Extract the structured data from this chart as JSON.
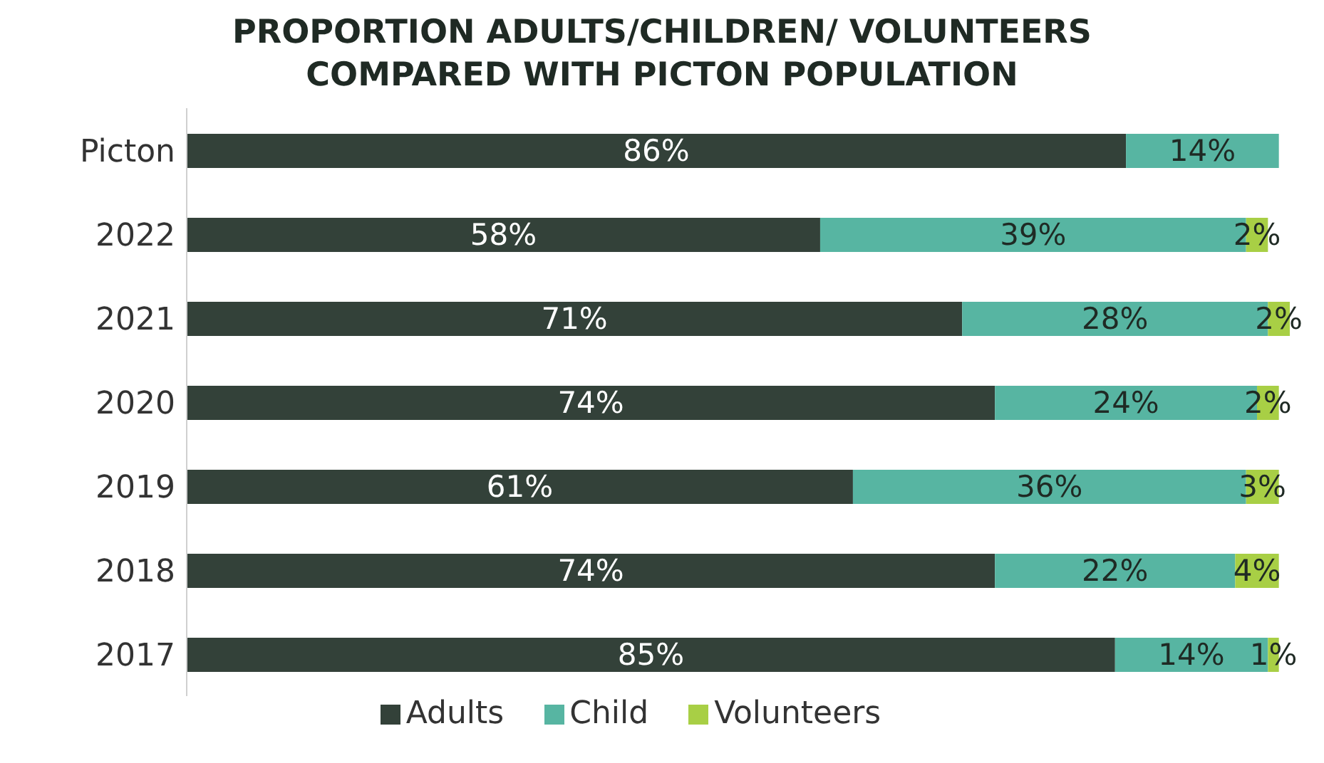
{
  "chart_data": {
    "type": "bar",
    "title": "PROPORTION ADULTS/CHILDREN/ VOLUNTEERS COMPARED WITH PICTON POPULATION",
    "orientation": "horizontal",
    "stacked": true,
    "legend": "bottom",
    "grid": false,
    "tick_labels": "y",
    "categories": [
      "Picton",
      "2022",
      "2021",
      "2020",
      "2019",
      "2018",
      "2017"
    ],
    "series": [
      {
        "name": "Adults",
        "color": "#334139",
        "values": [
          86,
          58,
          71,
          74,
          61,
          74,
          85
        ],
        "value_labels": [
          "86%",
          "58%",
          "71%",
          "74%",
          "61%",
          "74%",
          "85%"
        ]
      },
      {
        "name": "Child",
        "color": "#57b5a2",
        "values": [
          14,
          39,
          28,
          24,
          36,
          22,
          14
        ],
        "value_labels": [
          "14%",
          "39%",
          "28%",
          "24%",
          "36%",
          "22%",
          "14%"
        ]
      },
      {
        "name": "Volunteers",
        "color": "#a8cf45",
        "values": [
          null,
          2,
          2,
          2,
          3,
          4,
          1
        ],
        "value_labels": [
          null,
          "2%",
          "2%",
          "2%",
          "3%",
          "4%",
          "1%"
        ]
      }
    ]
  }
}
